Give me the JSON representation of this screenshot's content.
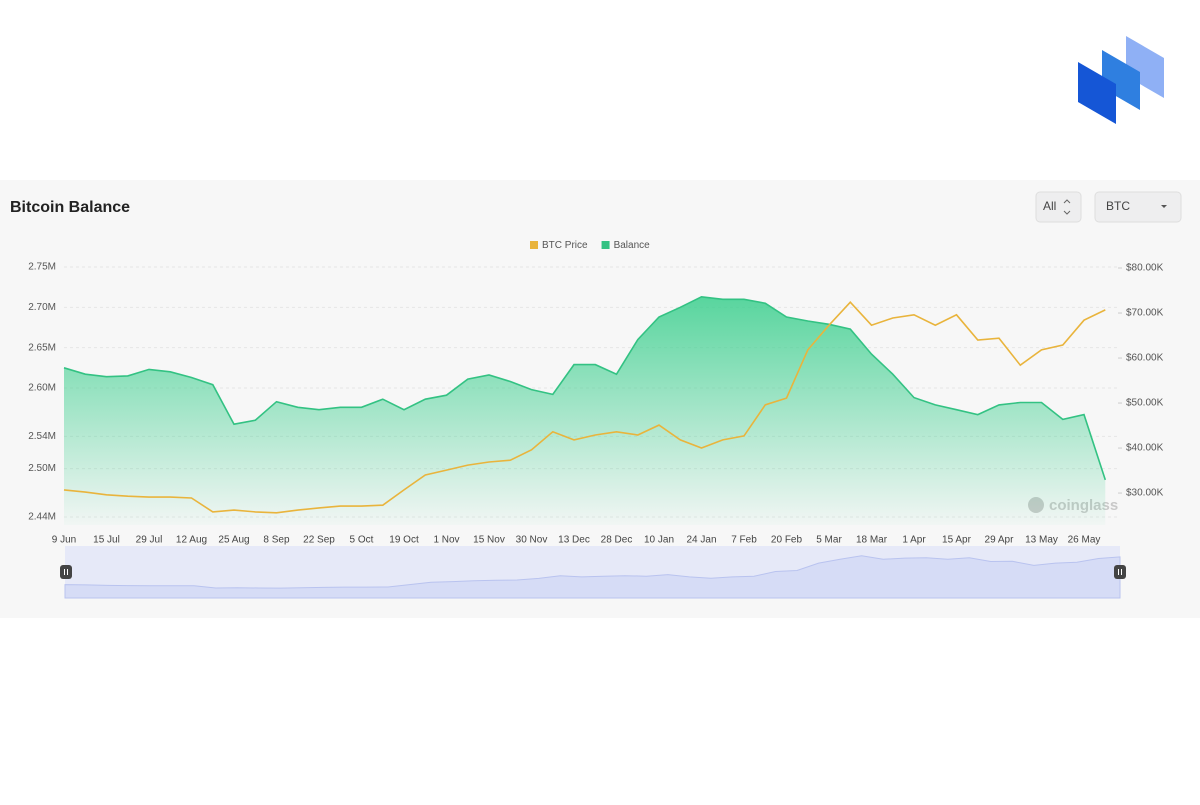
{
  "controls": {
    "range": "All",
    "unit": "BTC"
  },
  "chart_data": {
    "type": "line",
    "title": "Bitcoin Balance",
    "watermark": "coinglass",
    "categories": [
      "9 Jun",
      null,
      "15 Jul",
      null,
      "29 Jul",
      null,
      "12 Aug",
      null,
      "25 Aug",
      null,
      "8 Sep",
      null,
      "22 Sep",
      null,
      "5 Oct",
      null,
      "19 Oct",
      null,
      "1 Nov",
      null,
      "15 Nov",
      null,
      "30 Nov",
      null,
      "13 Dec",
      null,
      "28 Dec",
      null,
      "10 Jan",
      null,
      "24 Jan",
      null,
      "7 Feb",
      null,
      "20 Feb",
      null,
      "5 Mar",
      null,
      "18 Mar",
      null,
      "1 Apr",
      null,
      "15 Apr",
      null,
      "29 Apr",
      null,
      "13 May",
      null,
      "26 May",
      null
    ],
    "series": [
      {
        "name": "BTC Price",
        "color": "#e9b43c",
        "axis": "y2",
        "values": [
          30700,
          30200,
          29600,
          29300,
          29100,
          29100,
          28900,
          25800,
          26200,
          25800,
          25600,
          26200,
          26700,
          27100,
          27100,
          27300,
          30700,
          34000,
          35100,
          36200,
          36900,
          37300,
          39600,
          43600,
          41800,
          42900,
          43600,
          42900,
          45100,
          41800,
          40000,
          41800,
          42700,
          49600,
          51100,
          61800,
          67300,
          72400,
          67300,
          68900,
          69600,
          67300,
          69600,
          64000,
          64400,
          58400,
          61800,
          62900,
          68400,
          70700
        ]
      },
      {
        "name": "Balance",
        "color": "#33c283",
        "axis": "y",
        "values": [
          2625000,
          2617000,
          2614000,
          2615000,
          2623000,
          2620000,
          2613000,
          2604000,
          2555000,
          2560000,
          2583000,
          2576000,
          2573000,
          2576000,
          2576000,
          2586000,
          2573000,
          2586000,
          2591000,
          2611000,
          2616000,
          2608000,
          2598000,
          2592000,
          2629000,
          2629000,
          2617000,
          2660000,
          2688000,
          2700000,
          2713000,
          2710000,
          2710000,
          2705000,
          2688000,
          2683000,
          2679000,
          2673000,
          2642000,
          2617000,
          2588000,
          2579000,
          2573000,
          2567000,
          2579000,
          2582000,
          2582000,
          2561000,
          2567000,
          2486000
        ]
      }
    ],
    "ylim": [
      2430000,
      2752500
    ],
    "yticks": [
      {
        "value": 2440000,
        "label": "2.44M"
      },
      {
        "value": 2500000,
        "label": "2.50M"
      },
      {
        "value": 2540000,
        "label": "2.54M"
      },
      {
        "value": 2600000,
        "label": "2.60M"
      },
      {
        "value": 2650000,
        "label": "2.65M"
      },
      {
        "value": 2700000,
        "label": "2.70M"
      },
      {
        "value": 2750000,
        "label": "2.75M"
      }
    ],
    "y2lim": [
      22900,
      80670
    ],
    "y2ticks": [
      {
        "value": 30000,
        "label": "$30.00K"
      },
      {
        "value": 40000,
        "label": "$40.00K"
      },
      {
        "value": 50000,
        "label": "$50.00K"
      },
      {
        "value": 60000,
        "label": "$60.00K"
      },
      {
        "value": 70000,
        "label": "$70.00K"
      },
      {
        "value": 80000,
        "label": "$80.00K"
      }
    ],
    "grid": true,
    "legend": "top"
  }
}
